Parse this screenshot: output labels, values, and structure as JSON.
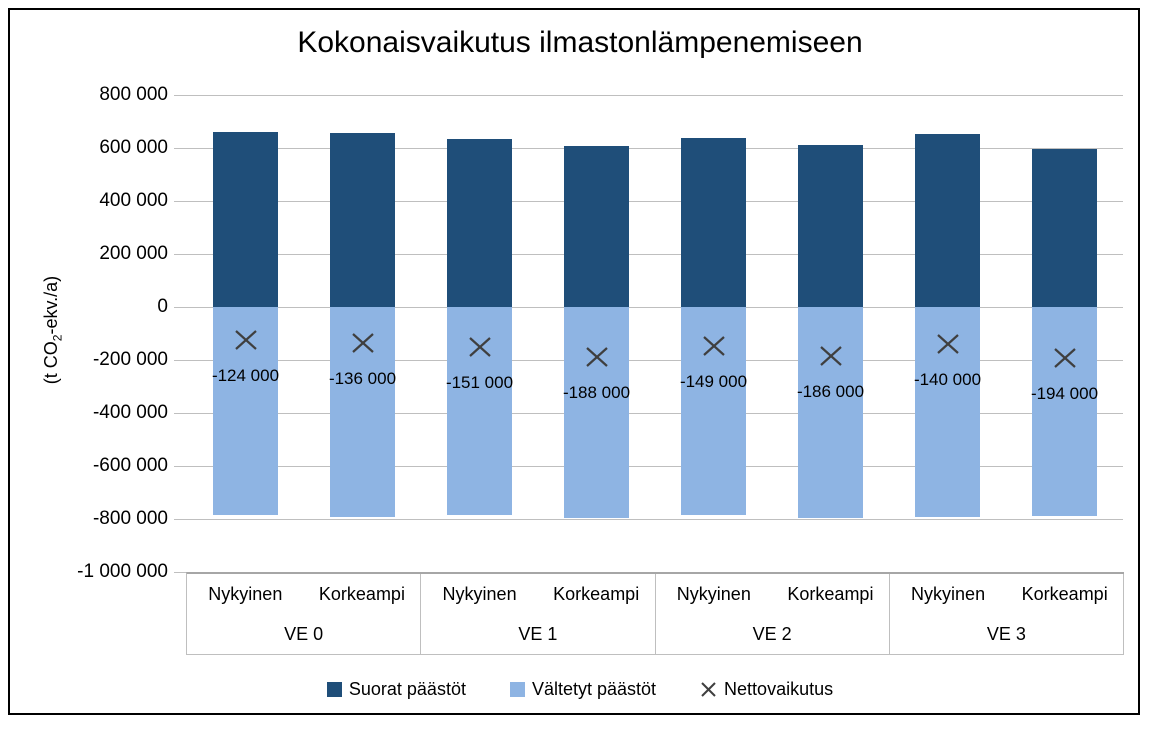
{
  "title": "Kokonaisvaikutus ilmastonlämpenemiseen",
  "chart_data": {
    "type": "bar",
    "title": "Kokonaisvaikutus ilmastonlämpenemiseen",
    "ylabel": "(t CO2-ekv./a)",
    "ylabel_parts": {
      "pre": "(t CO",
      "sub": "2",
      "post": "-ekv./a)"
    },
    "ylim": [
      -1000000,
      800000
    ],
    "ytick_step": 200000,
    "yticks": [
      {
        "value": 800000,
        "label": "800 000"
      },
      {
        "value": 600000,
        "label": "600 000"
      },
      {
        "value": 400000,
        "label": "400 000"
      },
      {
        "value": 200000,
        "label": "200 000"
      },
      {
        "value": 0,
        "label": "0"
      },
      {
        "value": -200000,
        "label": "-200 000"
      },
      {
        "value": -400000,
        "label": "-400 000"
      },
      {
        "value": -600000,
        "label": "-600 000"
      },
      {
        "value": -800000,
        "label": "-800 000"
      },
      {
        "value": -1000000,
        "label": "-1 000 000"
      }
    ],
    "groups": [
      "VE 0",
      "VE 1",
      "VE 2",
      "VE 3"
    ],
    "subcategories": [
      "Nykyinen",
      "Korkeampi"
    ],
    "series": [
      {
        "name": "Suorat päästöt",
        "type": "bar",
        "color": "#1F4E79",
        "values": [
          660000,
          658000,
          633000,
          608000,
          637000,
          611000,
          652000,
          595000
        ]
      },
      {
        "name": "Vältetyt päästöt",
        "type": "bar",
        "color": "#8EB4E3",
        "values": [
          -784000,
          -794000,
          -784000,
          -796000,
          -786000,
          -797000,
          -792000,
          -789000
        ]
      },
      {
        "name": "Nettovaikutus",
        "type": "marker",
        "color": "#3F3F3F",
        "values": [
          -124000,
          -136000,
          -151000,
          -188000,
          -149000,
          -186000,
          -140000,
          -194000
        ]
      }
    ],
    "marker_labels": [
      "-124 000",
      "-136 000",
      "-151 000",
      "-188 000",
      "-149 000",
      "-186 000",
      "-140 000",
      "-194 000"
    ],
    "grid": true,
    "legend_position": "bottom",
    "colors": {
      "gridline": "#BFBFBF",
      "axis_line": "#A6A6A6",
      "text": "#000000"
    }
  }
}
